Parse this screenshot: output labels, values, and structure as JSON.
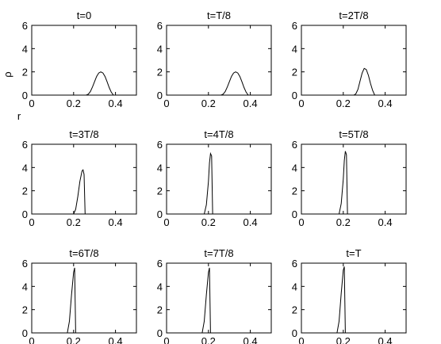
{
  "chart_data": [
    {
      "type": "line",
      "title": "t=0",
      "ylabel": "ρ",
      "xlabel": "r",
      "xlim": [
        0,
        0.5
      ],
      "ylim": [
        0,
        6
      ],
      "xticks": [
        0,
        0.2,
        0.4
      ],
      "yticks": [
        0,
        2,
        4,
        6
      ],
      "series": [
        {
          "x": [
            0,
            0.26,
            0.27,
            0.28,
            0.29,
            0.3,
            0.31,
            0.32,
            0.33,
            0.34,
            0.35,
            0.36,
            0.37,
            0.38,
            0.39,
            0.5
          ],
          "y": [
            0,
            0,
            0.08,
            0.3,
            0.7,
            1.15,
            1.6,
            1.9,
            2.0,
            1.9,
            1.6,
            1.15,
            0.65,
            0.25,
            0,
            0
          ]
        }
      ]
    },
    {
      "type": "line",
      "title": "t=T/8",
      "ylabel": "",
      "xlabel": "",
      "xlim": [
        0,
        0.5
      ],
      "ylim": [
        0,
        6
      ],
      "xticks": [
        0,
        0.2,
        0.4
      ],
      "yticks": [
        0,
        2,
        4,
        6
      ],
      "series": [
        {
          "x": [
            0,
            0.26,
            0.27,
            0.28,
            0.29,
            0.3,
            0.31,
            0.32,
            0.33,
            0.34,
            0.35,
            0.36,
            0.37,
            0.38,
            0.39,
            0.5
          ],
          "y": [
            0,
            0,
            0.08,
            0.3,
            0.7,
            1.15,
            1.6,
            1.9,
            2.0,
            1.9,
            1.6,
            1.15,
            0.65,
            0.25,
            0,
            0
          ]
        }
      ]
    },
    {
      "type": "line",
      "title": "t=2T/8",
      "ylabel": "",
      "xlabel": "",
      "xlim": [
        0,
        0.5
      ],
      "ylim": [
        0,
        6
      ],
      "xticks": [
        0,
        0.2,
        0.4
      ],
      "yticks": [
        0,
        2,
        4,
        6
      ],
      "series": [
        {
          "x": [
            0,
            0.25,
            0.26,
            0.27,
            0.28,
            0.29,
            0.3,
            0.31,
            0.32,
            0.33,
            0.34,
            0.35,
            0.5
          ],
          "y": [
            0,
            0,
            0.1,
            0.5,
            1.2,
            1.9,
            2.3,
            2.2,
            1.7,
            1.0,
            0.4,
            0,
            0
          ]
        }
      ]
    },
    {
      "type": "line",
      "title": "t=3T/8",
      "ylabel": "",
      "xlabel": "",
      "xlim": [
        0,
        0.5
      ],
      "ylim": [
        0,
        6
      ],
      "xticks": [
        0,
        0.2,
        0.4
      ],
      "yticks": [
        0,
        2,
        4,
        6
      ],
      "series": [
        {
          "x": [
            0,
            0.2,
            0.21,
            0.22,
            0.23,
            0.24,
            0.245,
            0.25,
            0.255,
            0.5
          ],
          "y": [
            0,
            0,
            0.4,
            1.5,
            2.8,
            3.7,
            3.8,
            3.4,
            0,
            0
          ]
        }
      ]
    },
    {
      "type": "line",
      "title": "t=4T/8",
      "ylabel": "",
      "xlabel": "",
      "xlim": [
        0,
        0.5
      ],
      "ylim": [
        0,
        6
      ],
      "xticks": [
        0,
        0.2,
        0.4
      ],
      "yticks": [
        0,
        2,
        4,
        6
      ],
      "series": [
        {
          "x": [
            0,
            0.18,
            0.19,
            0.2,
            0.205,
            0.21,
            0.215,
            0.22,
            0.5
          ],
          "y": [
            0,
            0,
            0.8,
            2.8,
            4.4,
            5.2,
            5.0,
            0,
            0
          ]
        }
      ]
    },
    {
      "type": "line",
      "title": "t=5T/8",
      "ylabel": "",
      "xlabel": "",
      "xlim": [
        0,
        0.5
      ],
      "ylim": [
        0,
        6
      ],
      "xticks": [
        0,
        0.2,
        0.4
      ],
      "yticks": [
        0,
        2,
        4,
        6
      ],
      "series": [
        {
          "x": [
            0,
            0.18,
            0.19,
            0.2,
            0.205,
            0.21,
            0.215,
            0.22,
            0.5
          ],
          "y": [
            0,
            0,
            0.9,
            3.0,
            4.6,
            5.4,
            5.1,
            0,
            0
          ]
        }
      ]
    },
    {
      "type": "line",
      "title": "t=6T/8",
      "ylabel": "",
      "xlabel": "",
      "xlim": [
        0,
        0.5
      ],
      "ylim": [
        0,
        6
      ],
      "xticks": [
        0,
        0.2,
        0.4
      ],
      "yticks": [
        0,
        2,
        4,
        6
      ],
      "series": [
        {
          "x": [
            0,
            0.17,
            0.18,
            0.19,
            0.2,
            0.205,
            0.21,
            0.5
          ],
          "y": [
            0,
            0,
            1.0,
            3.3,
            5.2,
            5.6,
            0,
            0
          ]
        }
      ]
    },
    {
      "type": "line",
      "title": "t=7T/8",
      "ylabel": "",
      "xlabel": "",
      "xlim": [
        0,
        0.5
      ],
      "ylim": [
        0,
        6
      ],
      "xticks": [
        0,
        0.2,
        0.4
      ],
      "yticks": [
        0,
        2,
        4,
        6
      ],
      "series": [
        {
          "x": [
            0,
            0.17,
            0.18,
            0.19,
            0.2,
            0.205,
            0.21,
            0.5
          ],
          "y": [
            0,
            0,
            1.0,
            3.3,
            5.2,
            5.6,
            0,
            0
          ]
        }
      ]
    },
    {
      "type": "line",
      "title": "t=T",
      "ylabel": "",
      "xlabel": "",
      "xlim": [
        0,
        0.5
      ],
      "ylim": [
        0,
        6
      ],
      "xticks": [
        0,
        0.2,
        0.4
      ],
      "yticks": [
        0,
        2,
        4,
        6
      ],
      "series": [
        {
          "x": [
            0,
            0.17,
            0.18,
            0.19,
            0.2,
            0.205,
            0.21,
            0.5
          ],
          "y": [
            0,
            0,
            1.0,
            3.4,
            5.4,
            5.7,
            0,
            0
          ]
        }
      ]
    }
  ]
}
